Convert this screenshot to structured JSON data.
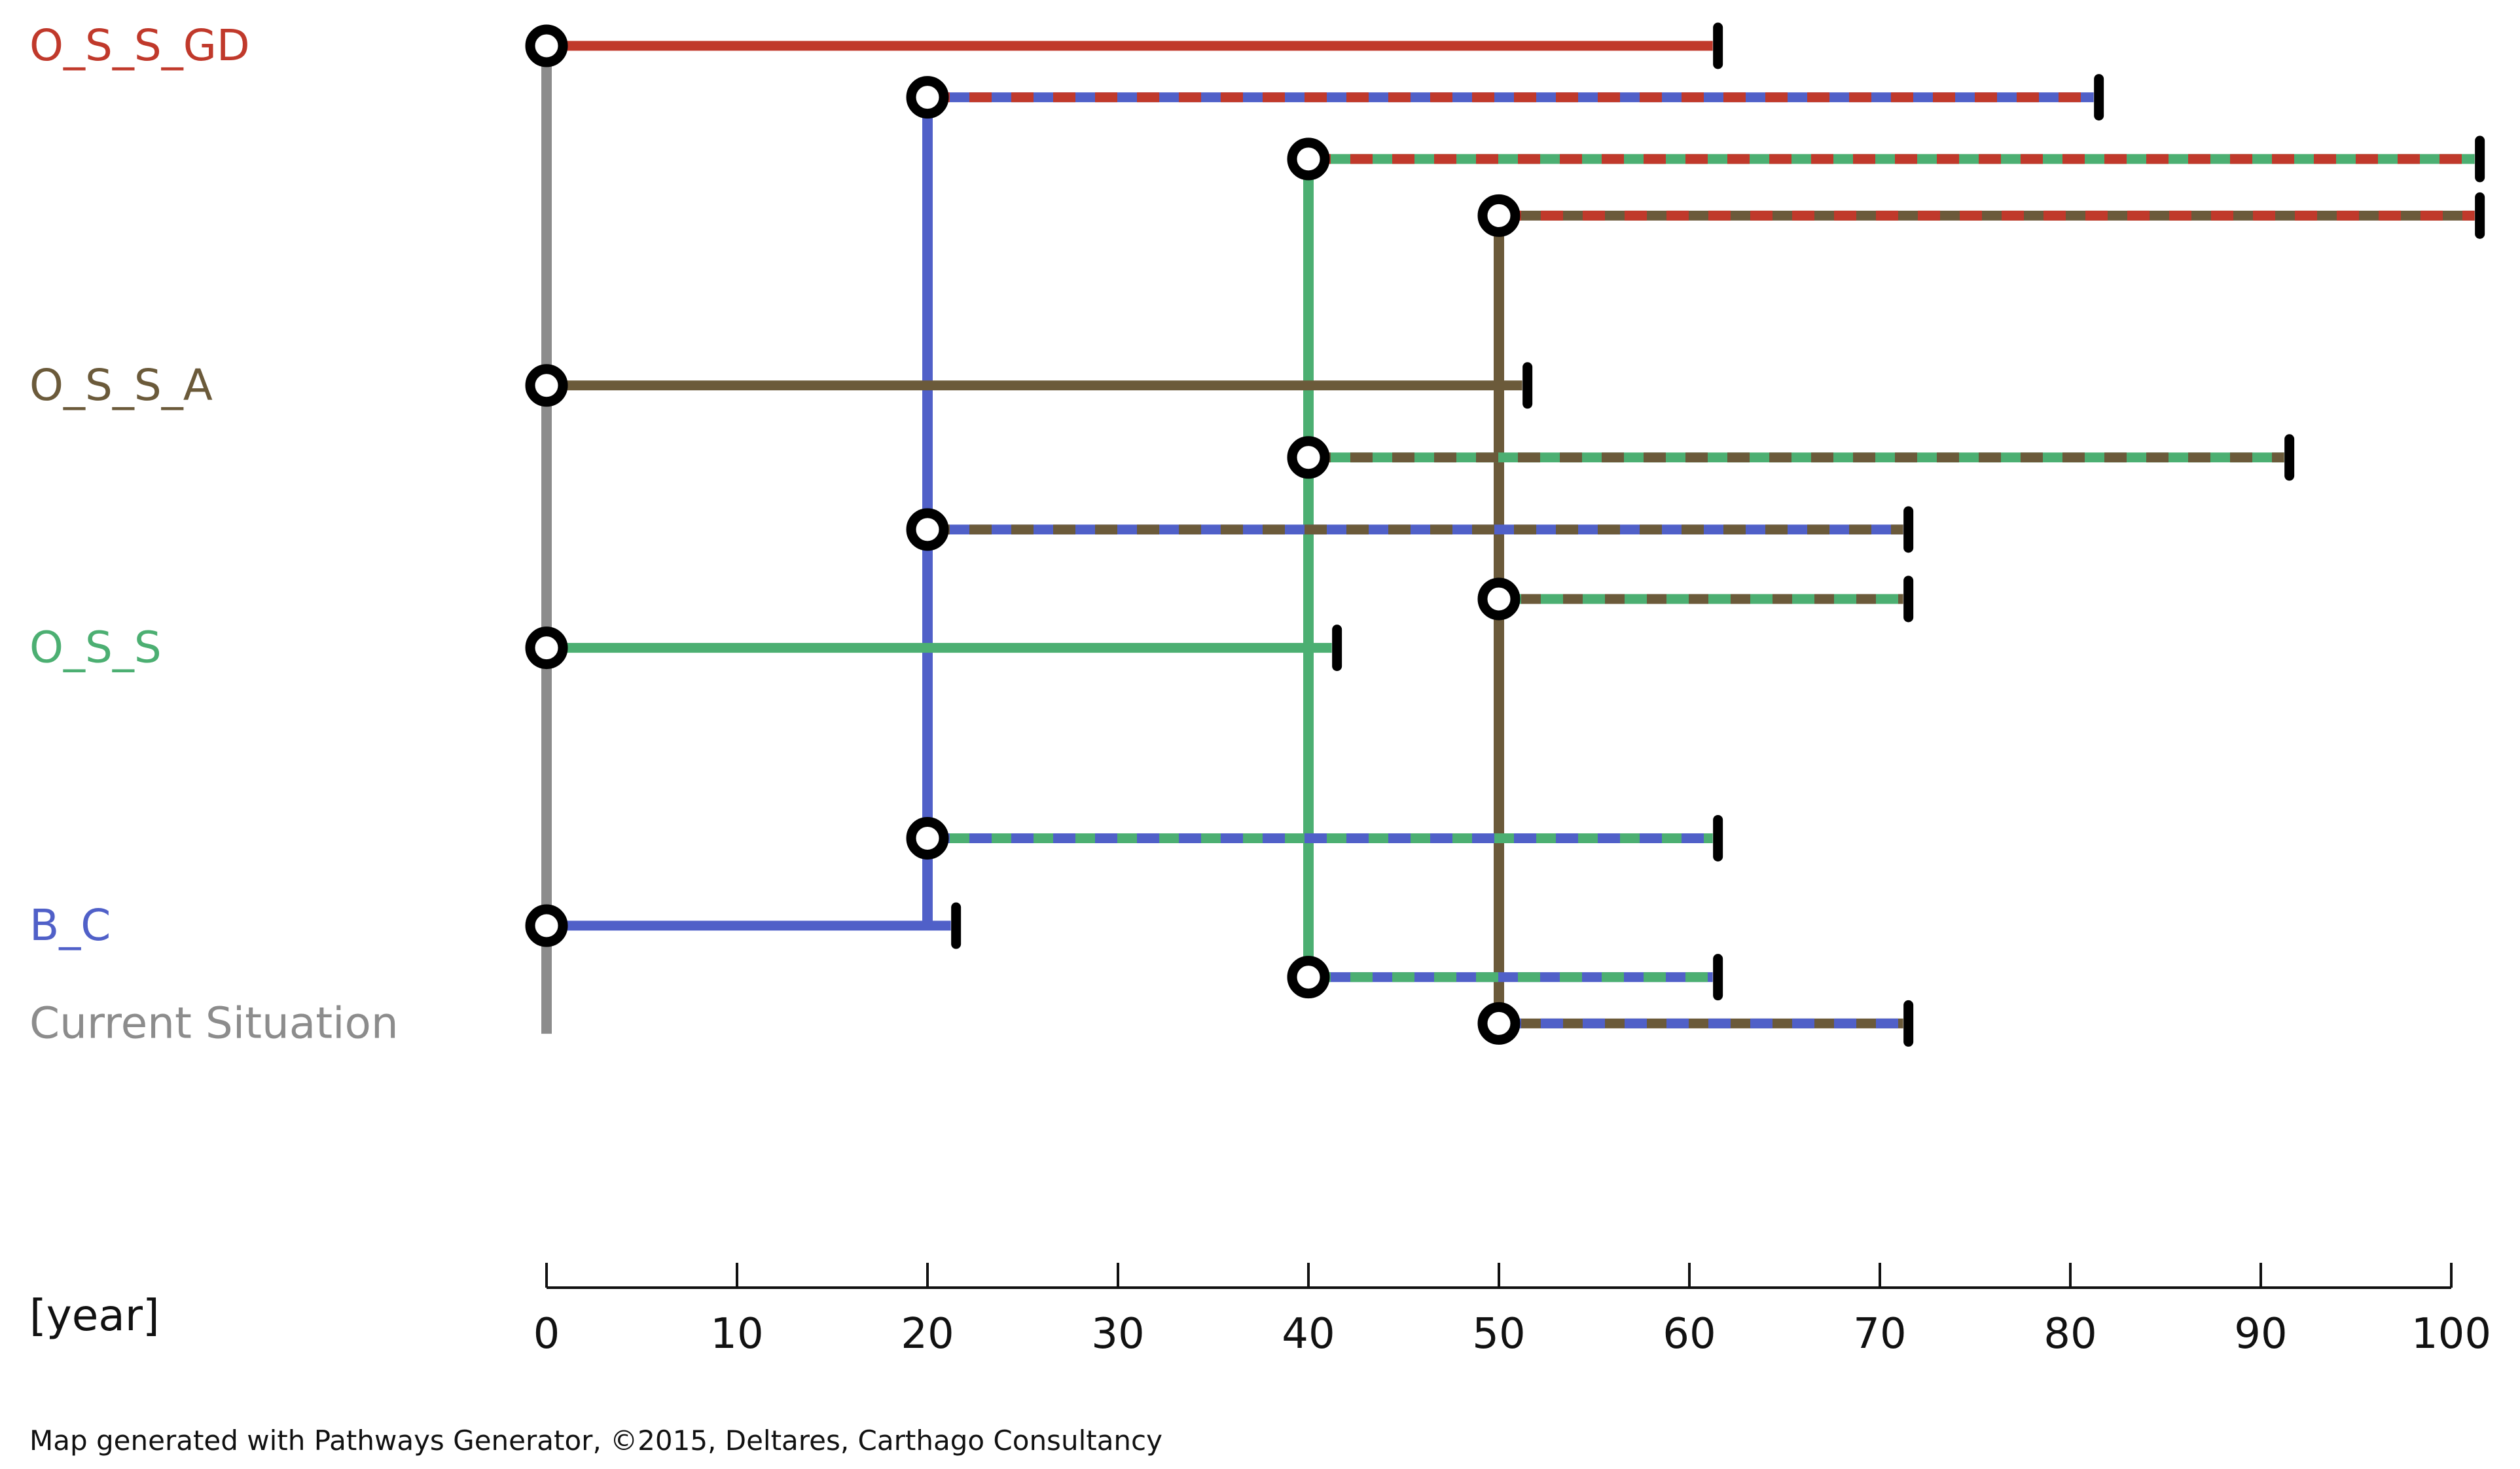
{
  "chart_data": {
    "type": "adaptation-pathways-map",
    "xlabel": "[year]",
    "xlim": [
      0,
      100
    ],
    "x_ticks": [
      "0",
      "10",
      "20",
      "30",
      "40",
      "50",
      "60",
      "70",
      "80",
      "90",
      "100"
    ],
    "footer": "Map generated with Pathways Generator, ©2015, Deltares, Carthago Consultancy",
    "actions": [
      {
        "key": "gd",
        "name": "O_S_S_GD",
        "color": "#c0392b"
      },
      {
        "key": "a",
        "name": "O_S_S_A",
        "color": "#6b5a3a"
      },
      {
        "key": "s",
        "name": "O_S_S",
        "color": "#4caf72"
      },
      {
        "key": "bc",
        "name": "B_C",
        "color": "#5060c8"
      },
      {
        "key": "cur",
        "name": "Current Situation",
        "color": "#8c8c8c"
      }
    ],
    "segments": [
      {
        "row": 0.0,
        "start": 0,
        "end": 61.5,
        "colors": [
          "gd"
        ]
      },
      {
        "row": 1.0,
        "start": 20,
        "end": 81.5,
        "colors": [
          "bc",
          "gd"
        ]
      },
      {
        "row": 2.2,
        "start": 40,
        "end": 101.5,
        "colors": [
          "s",
          "gd"
        ]
      },
      {
        "row": 3.3,
        "start": 50,
        "end": 101.5,
        "colors": [
          "a",
          "gd"
        ]
      },
      {
        "row": 6.6,
        "start": 0,
        "end": 51.5,
        "colors": [
          "a"
        ]
      },
      {
        "row": 8.0,
        "start": 40,
        "end": 91.5,
        "colors": [
          "s",
          "a"
        ]
      },
      {
        "row": 9.4,
        "start": 20,
        "end": 71.5,
        "colors": [
          "bc",
          "a"
        ]
      },
      {
        "row": 10.75,
        "start": 50,
        "end": 71.5,
        "colors": [
          "a",
          "s"
        ]
      },
      {
        "row": 11.7,
        "start": 0,
        "end": 41.5,
        "colors": [
          "s"
        ]
      },
      {
        "row": 15.4,
        "start": 20,
        "end": 61.5,
        "colors": [
          "s",
          "bc"
        ]
      },
      {
        "row": 17.1,
        "start": 0,
        "end": 21.5,
        "colors": [
          "bc"
        ]
      },
      {
        "row": 18.1,
        "start": 40,
        "end": 61.5,
        "colors": [
          "bc",
          "s"
        ]
      },
      {
        "row": 19.0,
        "start": 50,
        "end": 71.5,
        "colors": [
          "a",
          "bc"
        ]
      }
    ],
    "transfers": [
      {
        "x": 0,
        "from_row": 0.0,
        "to_row": 19.2,
        "color": "cur"
      },
      {
        "x": 20,
        "from_row": 1.0,
        "to_row": 17.1,
        "color": "bc"
      },
      {
        "x": 40,
        "from_row": 2.2,
        "to_row": 18.1,
        "color": "s"
      },
      {
        "x": 50,
        "from_row": 3.3,
        "to_row": 19.0,
        "color": "a"
      }
    ],
    "label_rows": [
      {
        "key": "gd",
        "row": 0.0
      },
      {
        "key": "a",
        "row": 6.6
      },
      {
        "key": "s",
        "row": 11.7
      },
      {
        "key": "bc",
        "row": 17.1
      },
      {
        "key": "cur",
        "row": 19.0
      }
    ]
  }
}
